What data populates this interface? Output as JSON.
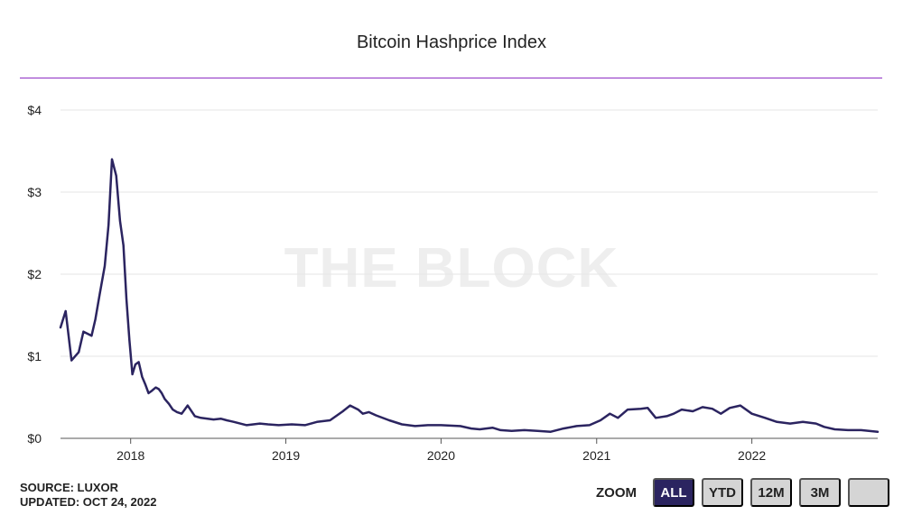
{
  "chart_data": {
    "type": "line",
    "title": "Bitcoin Hashprice Index",
    "xlabel": "",
    "ylabel": "",
    "y_ticks": [
      "$0",
      "$1",
      "$2",
      "$3",
      "$4"
    ],
    "x_ticks": [
      "2018",
      "2019",
      "2020",
      "2021",
      "2022"
    ],
    "ylim": [
      0,
      4
    ],
    "xlim": [
      "2017-07-20",
      "2022-10-24"
    ],
    "grid": true,
    "line_color": "#2b2460",
    "watermark": "THE BLOCK",
    "series": [
      {
        "x": [
          "2017-07-20",
          "2017-08-01",
          "2017-08-15",
          "2017-09-01",
          "2017-09-12",
          "2017-10-01",
          "2017-10-10",
          "2017-10-20",
          "2017-11-01",
          "2017-11-10",
          "2017-11-18",
          "2017-11-28",
          "2017-12-07",
          "2017-12-15",
          "2017-12-22",
          "2017-12-29",
          "2018-01-05",
          "2018-01-12",
          "2018-01-20",
          "2018-01-28",
          "2018-02-05",
          "2018-02-12",
          "2018-02-20",
          "2018-03-01",
          "2018-03-08",
          "2018-03-15",
          "2018-03-22",
          "2018-04-01",
          "2018-04-10",
          "2018-04-20",
          "2018-05-01",
          "2018-05-15",
          "2018-06-01",
          "2018-06-15",
          "2018-07-01",
          "2018-07-15",
          "2018-08-01",
          "2018-08-15",
          "2018-09-01",
          "2018-10-01",
          "2018-11-01",
          "2018-11-20",
          "2018-12-15",
          "2019-01-15",
          "2019-02-15",
          "2019-03-15",
          "2019-04-15",
          "2019-05-15",
          "2019-06-01",
          "2019-06-20",
          "2019-07-01",
          "2019-07-15",
          "2019-08-01",
          "2019-09-01",
          "2019-10-01",
          "2019-11-01",
          "2019-12-01",
          "2020-01-01",
          "2020-02-15",
          "2020-03-12",
          "2020-04-01",
          "2020-05-01",
          "2020-05-20",
          "2020-06-15",
          "2020-07-15",
          "2020-08-15",
          "2020-09-15",
          "2020-10-15",
          "2020-11-15",
          "2020-12-15",
          "2021-01-10",
          "2021-02-01",
          "2021-02-20",
          "2021-03-15",
          "2021-04-15",
          "2021-05-01",
          "2021-05-20",
          "2021-06-15",
          "2021-07-01",
          "2021-07-20",
          "2021-08-15",
          "2021-09-07",
          "2021-09-30",
          "2021-10-20",
          "2021-11-10",
          "2021-12-05",
          "2022-01-01",
          "2022-02-01",
          "2022-03-01",
          "2022-04-01",
          "2022-05-01",
          "2022-06-01",
          "2022-06-20",
          "2022-07-15",
          "2022-08-15",
          "2022-09-15",
          "2022-10-24"
        ],
        "y": [
          1.35,
          1.55,
          0.95,
          1.05,
          1.3,
          1.25,
          1.45,
          1.75,
          2.1,
          2.6,
          3.4,
          3.2,
          2.65,
          2.35,
          1.7,
          1.2,
          0.78,
          0.9,
          0.93,
          0.75,
          0.65,
          0.55,
          0.58,
          0.62,
          0.6,
          0.55,
          0.48,
          0.42,
          0.35,
          0.32,
          0.3,
          0.4,
          0.27,
          0.25,
          0.24,
          0.23,
          0.24,
          0.22,
          0.2,
          0.16,
          0.18,
          0.17,
          0.16,
          0.17,
          0.16,
          0.2,
          0.22,
          0.33,
          0.4,
          0.35,
          0.3,
          0.32,
          0.28,
          0.22,
          0.17,
          0.15,
          0.16,
          0.16,
          0.15,
          0.12,
          0.11,
          0.13,
          0.1,
          0.09,
          0.1,
          0.09,
          0.08,
          0.12,
          0.15,
          0.16,
          0.22,
          0.3,
          0.25,
          0.35,
          0.36,
          0.37,
          0.25,
          0.27,
          0.3,
          0.35,
          0.33,
          0.38,
          0.36,
          0.3,
          0.37,
          0.4,
          0.3,
          0.25,
          0.2,
          0.18,
          0.2,
          0.18,
          0.14,
          0.11,
          0.1,
          0.1,
          0.08
        ]
      }
    ]
  },
  "footer": {
    "source": "SOURCE: LUXOR",
    "updated": "UPDATED: OCT 24, 2022"
  },
  "zoom": {
    "label": "ZOOM",
    "buttons": [
      "ALL",
      "YTD",
      "12M",
      "3M",
      ""
    ],
    "active": "ALL"
  }
}
